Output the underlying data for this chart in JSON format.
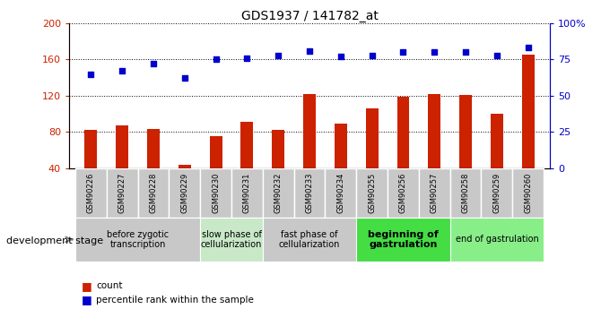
{
  "title": "GDS1937 / 141782_at",
  "samples": [
    "GSM90226",
    "GSM90227",
    "GSM90228",
    "GSM90229",
    "GSM90230",
    "GSM90231",
    "GSM90232",
    "GSM90233",
    "GSM90234",
    "GSM90255",
    "GSM90256",
    "GSM90257",
    "GSM90258",
    "GSM90259",
    "GSM90260"
  ],
  "counts": [
    82,
    87,
    83,
    44,
    76,
    91,
    82,
    122,
    89,
    106,
    119,
    122,
    121,
    100,
    165
  ],
  "percentiles": [
    65,
    67,
    72,
    62,
    75,
    76,
    78,
    81,
    77,
    78,
    80,
    80,
    80,
    78,
    83
  ],
  "bar_color": "#cc2200",
  "dot_color": "#0000cc",
  "ylim_left": [
    40,
    200
  ],
  "ylim_right": [
    0,
    100
  ],
  "yticks_left": [
    40,
    80,
    120,
    160,
    200
  ],
  "yticks_right": [
    0,
    25,
    50,
    75,
    100
  ],
  "yticklabels_right": [
    "0",
    "25",
    "50",
    "75",
    "100%"
  ],
  "stages": [
    {
      "label": "before zygotic\ntranscription",
      "samples": [
        "GSM90226",
        "GSM90227",
        "GSM90228",
        "GSM90229"
      ],
      "color": "#c8c8c8"
    },
    {
      "label": "slow phase of\ncellularization",
      "samples": [
        "GSM90230",
        "GSM90231"
      ],
      "color": "#c8e8c8"
    },
    {
      "label": "fast phase of\ncellularization",
      "samples": [
        "GSM90232",
        "GSM90233",
        "GSM90234"
      ],
      "color": "#c8c8c8"
    },
    {
      "label": "beginning of\ngastrulation",
      "samples": [
        "GSM90255",
        "GSM90256",
        "GSM90257"
      ],
      "color": "#44dd44"
    },
    {
      "label": "end of gastrulation",
      "samples": [
        "GSM90258",
        "GSM90259",
        "GSM90260"
      ],
      "color": "#88ee88"
    }
  ],
  "legend_count_color": "#cc2200",
  "legend_pct_color": "#0000cc",
  "dev_stage_label": "development stage",
  "background_color": "#ffffff",
  "grid_color": "#000000",
  "tick_label_color_left": "#cc2200",
  "tick_label_color_right": "#0000cc",
  "bar_width": 0.4,
  "xtick_box_color": "#c8c8c8",
  "xtick_border_color": "#ffffff"
}
